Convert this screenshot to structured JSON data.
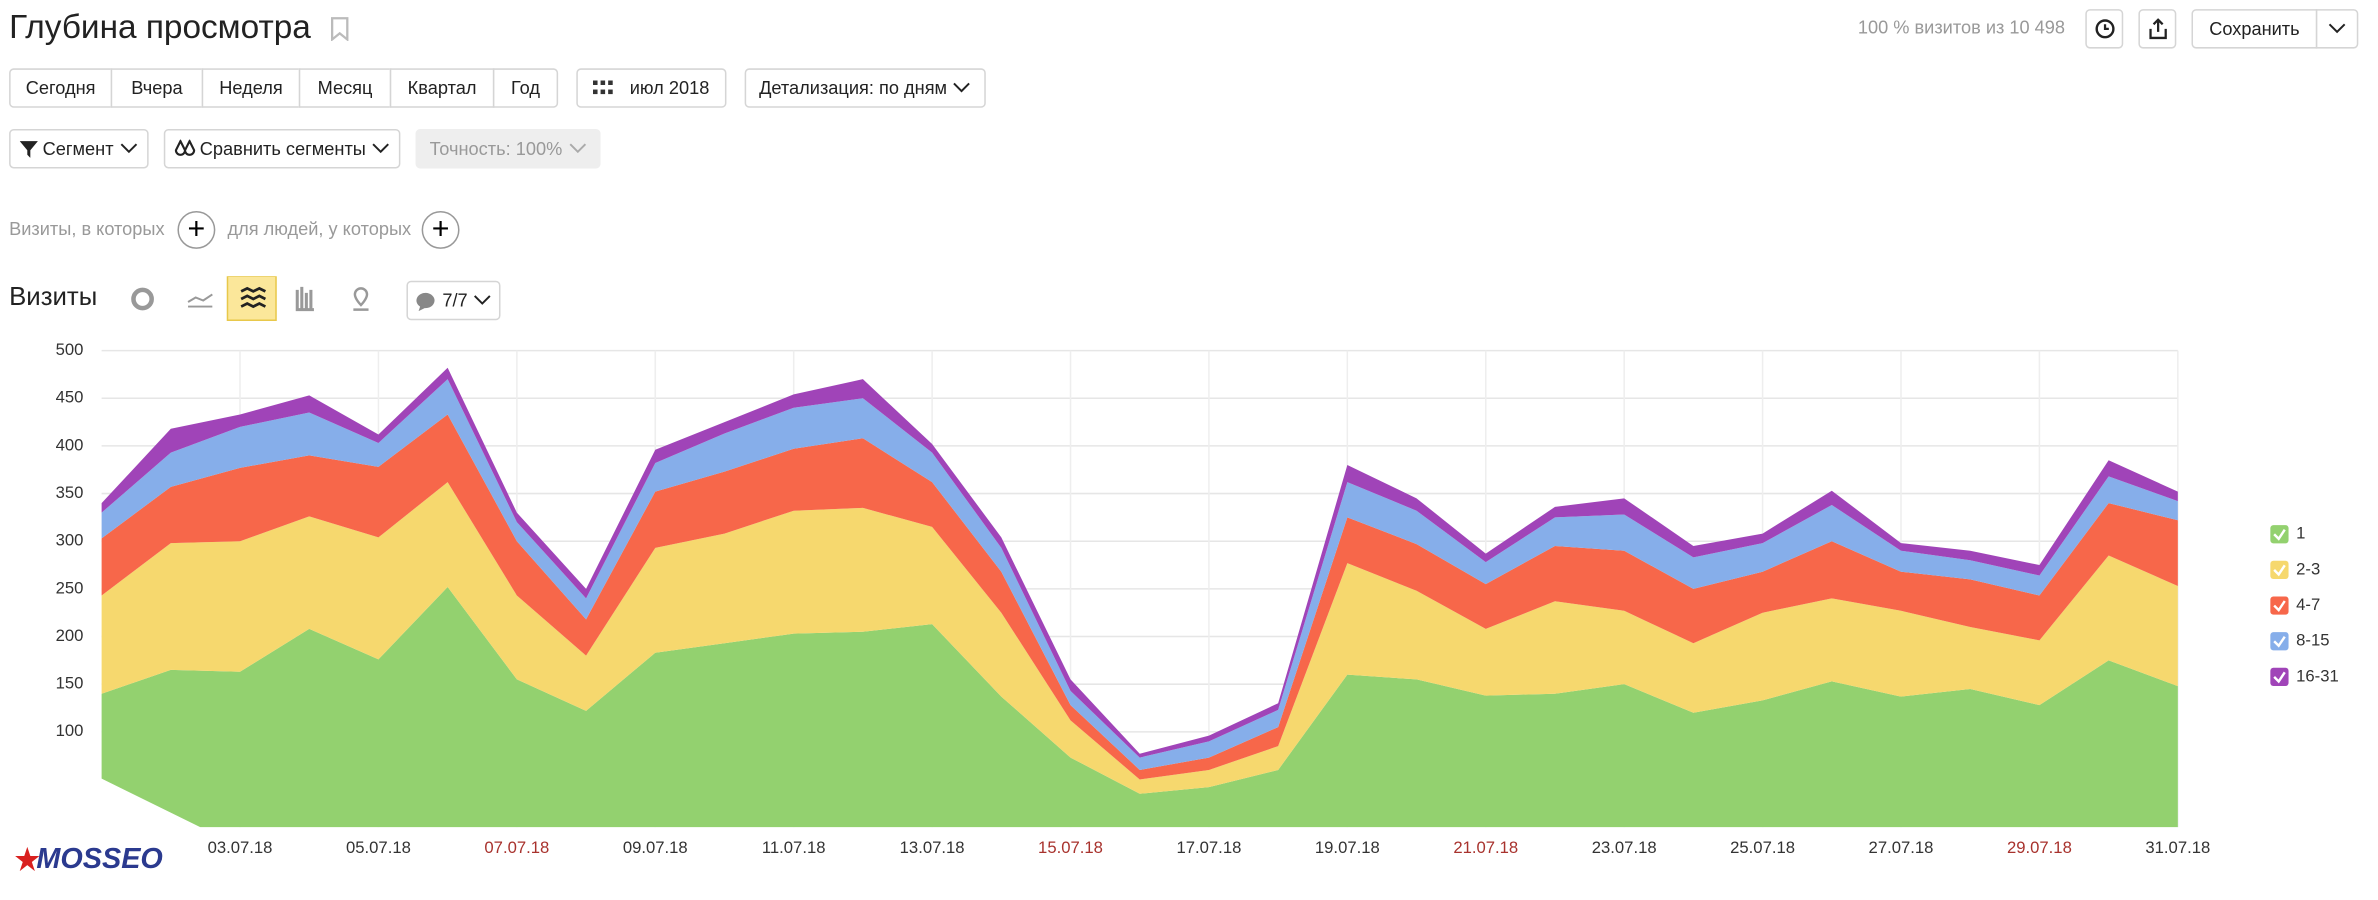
{
  "header": {
    "title": "Глубина просмотра",
    "sampling": "100 % визитов из 10 498",
    "save": "Сохранить"
  },
  "periods": [
    "Сегодня",
    "Вчера",
    "Неделя",
    "Месяц",
    "Квартал",
    "Год"
  ],
  "month": "июл 2018",
  "detail": "Детализация: по дням",
  "segment": "Сегмент",
  "compare": "Сравнить сегменты",
  "accuracy": "Точность: 100%",
  "filters": [
    "Визиты, в которых",
    "для людей, у которых"
  ],
  "metric": "Визиты",
  "annotations": "7/7",
  "watermark": "MOSSEO",
  "chart_data": {
    "type": "area",
    "stacked": true,
    "categories": [
      null,
      null,
      "03.07.18",
      null,
      "05.07.18",
      null,
      "07.07.18",
      null,
      "09.07.18",
      null,
      "11.07.18",
      null,
      "13.07.18",
      null,
      "15.07.18",
      null,
      "17.07.18",
      null,
      "19.07.18",
      null,
      "21.07.18",
      null,
      "23.07.18",
      null,
      "25.07.18",
      null,
      "27.07.18",
      null,
      "29.07.18",
      null,
      "31.07.18"
    ],
    "highlighted": [
      6,
      14,
      20,
      28
    ],
    "highlight_color": "#a8322d",
    "series": [
      {
        "name": "1",
        "color": "#93d16f",
        "values": [
          140,
          165,
          163,
          208,
          176,
          252,
          155,
          122,
          183,
          193,
          203,
          205,
          213,
          137,
          73,
          35,
          42,
          60,
          160,
          155,
          138,
          140,
          150,
          120,
          133,
          153,
          137,
          145,
          128,
          175,
          148
        ]
      },
      {
        "name": "2-3",
        "color": "#f6d86e",
        "values": [
          103,
          133,
          137,
          118,
          128,
          110,
          88,
          58,
          110,
          115,
          129,
          130,
          102,
          88,
          39,
          15,
          18,
          25,
          117,
          93,
          70,
          97,
          77,
          73,
          92,
          87,
          90,
          65,
          68,
          110,
          105
        ]
      },
      {
        "name": "4-7",
        "color": "#f7674a",
        "values": [
          60,
          59,
          77,
          64,
          74,
          71,
          57,
          38,
          59,
          65,
          65,
          73,
          47,
          43,
          16,
          10,
          13,
          20,
          48,
          49,
          47,
          58,
          63,
          57,
          43,
          60,
          41,
          50,
          47,
          55,
          69
        ]
      },
      {
        "name": "8-15",
        "color": "#86aeea",
        "values": [
          27,
          36,
          43,
          45,
          25,
          37,
          20,
          22,
          30,
          40,
          43,
          42,
          31,
          25,
          15,
          13,
          17,
          18,
          37,
          35,
          23,
          30,
          38,
          33,
          30,
          38,
          22,
          20,
          21,
          28,
          20
        ]
      },
      {
        "name": "16-31",
        "color": "#a044b8",
        "values": [
          10,
          25,
          13,
          18,
          9,
          12,
          10,
          10,
          14,
          12,
          14,
          20,
          9,
          11,
          12,
          4,
          6,
          7,
          18,
          13,
          9,
          11,
          17,
          12,
          10,
          15,
          8,
          10,
          11,
          17,
          10
        ]
      }
    ],
    "ylim": [
      0,
      500
    ],
    "yticks": [
      100,
      150,
      200,
      250,
      300,
      350,
      400,
      450,
      500
    ],
    "grid": true,
    "legend": "right"
  }
}
